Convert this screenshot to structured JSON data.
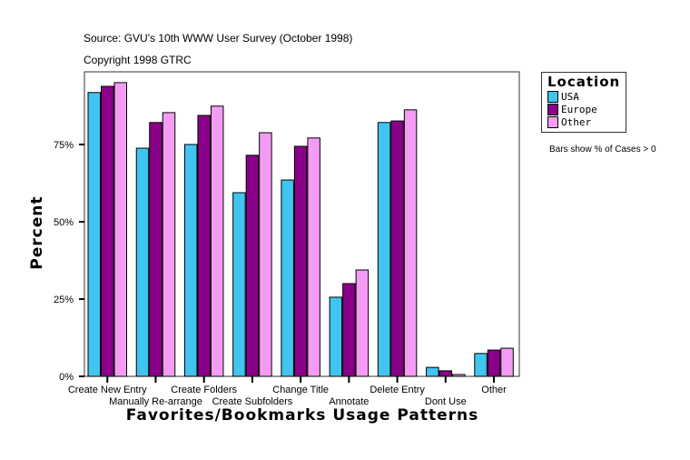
{
  "source": "Source: GVU's 10th WWW User Survey (October 1998)",
  "copyright": "Copyright 1998 GTRC",
  "note": "Bars show % of Cases > 0",
  "chart_data": {
    "type": "bar",
    "xlabel": "Favorites/Bookmarks Usage Patterns",
    "ylabel": "Percent",
    "ylim": [
      0,
      98.5
    ],
    "yticks": [
      0,
      25,
      50,
      75
    ],
    "ytick_labels": [
      "0%",
      "25%",
      "50%",
      "75%"
    ],
    "categories": [
      "Create New Entry",
      "Manually Re-arrange",
      "Create Folders",
      "Create Subfolders",
      "Change Title",
      "Annotate",
      "Delete Entry",
      "Dont Use",
      "Other"
    ],
    "legend_title": "Location",
    "legend_position": "right",
    "series": [
      {
        "name": "USA",
        "color": "#40C4F0",
        "values": [
          91.8,
          73.8,
          75.0,
          59.4,
          63.5,
          25.6,
          82.1,
          2.9,
          7.4
        ]
      },
      {
        "name": "Europe",
        "color": "#8A0088",
        "values": [
          93.8,
          82.1,
          84.4,
          71.5,
          74.4,
          30.0,
          82.6,
          1.8,
          8.5
        ]
      },
      {
        "name": "Other",
        "color": "#F49CF4",
        "values": [
          95.0,
          85.3,
          87.4,
          78.8,
          77.1,
          34.4,
          86.2,
          0.6,
          9.1
        ]
      }
    ]
  }
}
